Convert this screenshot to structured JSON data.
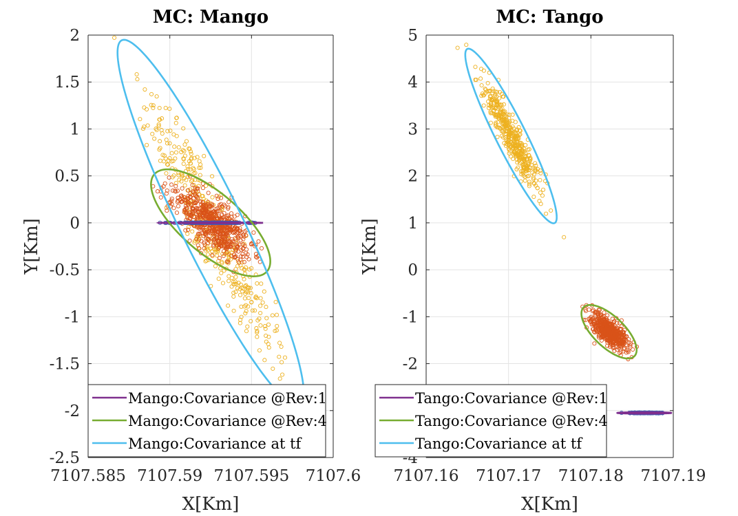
{
  "colors": {
    "rev1": "#7e2f8e",
    "rev4": "#77ac30",
    "tf": "#4dbeee",
    "marker_rev1": "#3a5fb5",
    "marker_rev4": "#d95319",
    "marker_tf": "#edb120",
    "grid": "#e3e3e3",
    "axis": "#262626"
  },
  "chart_data": [
    {
      "type": "scatter",
      "title": "MC: Mango",
      "xlabel": "X[Km]",
      "ylabel": "Y[Km]",
      "xlim": [
        7107.585,
        7107.6
      ],
      "ylim": [
        -2.5,
        2
      ],
      "xticks": [
        7107.585,
        7107.59,
        7107.595,
        7107.6
      ],
      "xtick_labels": [
        "7107.585",
        "7107.59",
        "7107.595",
        "7107.6"
      ],
      "yticks": [
        -2.5,
        -2,
        -1.5,
        -1,
        -0.5,
        0,
        0.5,
        1,
        1.5,
        2
      ],
      "ytick_labels": [
        "-2.5",
        "-2",
        "-1.5",
        "-1",
        "-0.5",
        "0",
        "0.5",
        "1",
        "1.5",
        "2"
      ],
      "grid": true,
      "legend_position": "bottom",
      "series": [
        {
          "name": "Mango:Covariance @Rev:1",
          "color_key": "rev1",
          "marker_key": "marker_rev1",
          "ellipse": {
            "center": [
              7107.5925,
              0.0
            ],
            "half_x": 0.0032,
            "half_y": 0.004,
            "angle_deg": 0
          },
          "cloud": {
            "center": [
              7107.5925,
              0.0
            ],
            "spread_x": 0.0011,
            "spread_y": 0.0012,
            "corr": 0.0,
            "count": 150,
            "seed": 11
          }
        },
        {
          "name": "Mango:Covariance @Rev:4",
          "color_key": "rev4",
          "marker_key": "marker_rev4",
          "ellipse": {
            "center": [
              7107.5925,
              0.0
            ],
            "half_x": 0.00365,
            "half_y": 0.57,
            "corr": -0.72
          },
          "cloud": {
            "center": [
              7107.5925,
              0.0
            ],
            "spread_x": 0.0012,
            "spread_y": 0.19,
            "corr": -0.72,
            "count": 600,
            "seed": 23
          }
        },
        {
          "name": "Mango:Covariance at tf",
          "color_key": "tf",
          "marker_key": "marker_tf",
          "ellipse": {
            "center": [
              7107.5925,
              0.0
            ],
            "half_x": 0.0057,
            "half_y": 1.95,
            "corr": -0.93
          },
          "cloud": {
            "center": [
              7107.5925,
              0.0
            ],
            "spread_x": 0.0019,
            "spread_y": 0.65,
            "corr": -0.93,
            "count": 420,
            "seed": 37
          }
        }
      ]
    },
    {
      "type": "scatter",
      "title": "MC: Tango",
      "xlabel": "X[Km]",
      "ylabel": "Y[Km]",
      "xlim": [
        7107.16,
        7107.19
      ],
      "ylim": [
        -4,
        5
      ],
      "xticks": [
        7107.16,
        7107.17,
        7107.18,
        7107.19
      ],
      "xtick_labels": [
        "7107.16",
        "7107.17",
        "7107.18",
        "7107.19"
      ],
      "yticks": [
        -4,
        -3,
        -2,
        -1,
        0,
        1,
        2,
        3,
        4,
        5
      ],
      "ytick_labels": [
        "-4",
        "-3",
        "-2",
        "-1",
        "0",
        "1",
        "2",
        "3",
        "4",
        "5"
      ],
      "grid": true,
      "legend_position": "bottom",
      "series": [
        {
          "name": "Tango:Covariance @Rev:1",
          "color_key": "rev1",
          "marker_key": "marker_rev1",
          "ellipse": {
            "center": [
              7107.1865,
              -3.05
            ],
            "half_x": 0.0033,
            "half_y": 0.015,
            "angle_deg": 0
          },
          "cloud": {
            "center": [
              7107.1865,
              -3.05
            ],
            "spread_x": 0.0011,
            "spread_y": 0.004,
            "corr": 0.0,
            "count": 130,
            "seed": 51
          }
        },
        {
          "name": "Tango:Covariance @Rev:4",
          "color_key": "rev4",
          "marker_key": "marker_rev4",
          "ellipse": {
            "center": [
              7107.1822,
              -1.32
            ],
            "half_x": 0.00335,
            "half_y": 0.57,
            "corr": -0.68
          },
          "cloud": {
            "center": [
              7107.1822,
              -1.32
            ],
            "spread_x": 0.0011,
            "spread_y": 0.19,
            "corr": -0.68,
            "count": 520,
            "seed": 63
          }
        },
        {
          "name": "Tango:Covariance at tf",
          "color_key": "tf",
          "marker_key": "marker_tf",
          "ellipse": {
            "center": [
              7107.1703,
              2.85
            ],
            "half_x": 0.00555,
            "half_y": 1.86,
            "corr": -0.93
          },
          "cloud": {
            "center": [
              7107.1703,
              2.85
            ],
            "spread_x": 0.00185,
            "spread_y": 0.62,
            "corr": -0.93,
            "count": 430,
            "seed": 77
          }
        }
      ]
    }
  ]
}
